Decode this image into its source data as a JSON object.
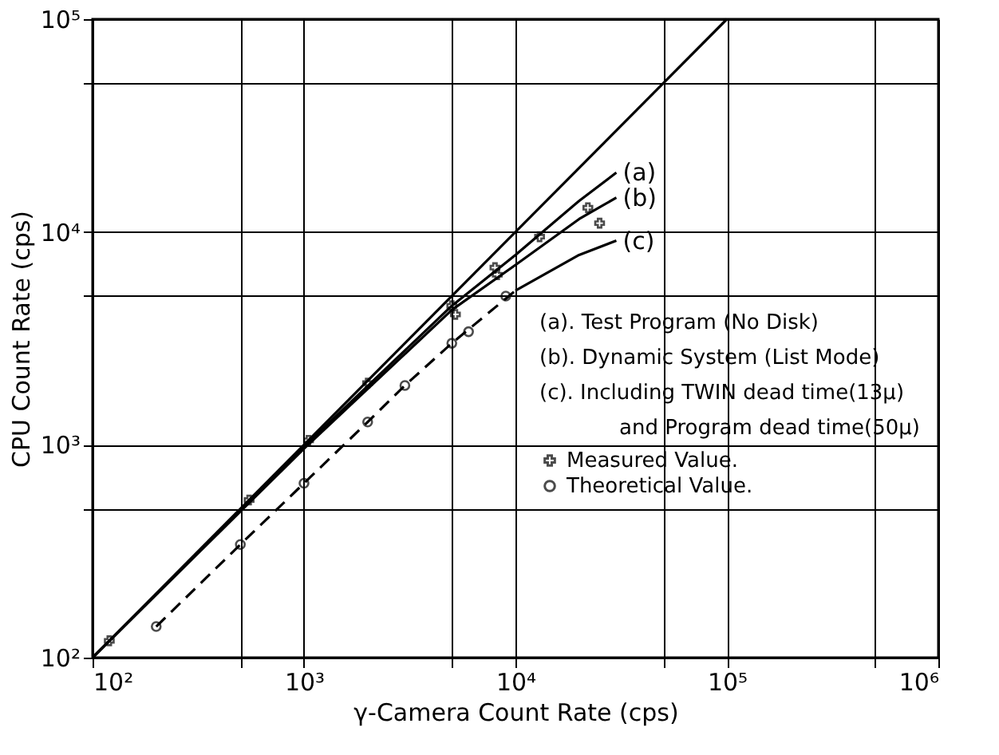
{
  "chart_data": {
    "type": "line",
    "xlabel": "γ-Camera Count Rate (cps)",
    "ylabel": "CPU Count Rate (cps)",
    "log": "xy",
    "grid": true,
    "legend": "right",
    "xlim": [
      100,
      1000000
    ],
    "ylim": [
      100,
      100000
    ],
    "xticks": [
      {
        "value": 100,
        "label": "10²"
      },
      {
        "value": 500,
        "label": null
      },
      {
        "value": 1000,
        "label": "10³"
      },
      {
        "value": 5000,
        "label": null
      },
      {
        "value": 10000,
        "label": "10⁴"
      },
      {
        "value": 50000,
        "label": null
      },
      {
        "value": 100000,
        "label": "10⁵"
      },
      {
        "value": 500000,
        "label": null
      },
      {
        "value": 1000000,
        "label": "10⁶"
      }
    ],
    "yticks": [
      {
        "value": 100,
        "label": "10²"
      },
      {
        "value": 500,
        "label": null
      },
      {
        "value": 1000,
        "label": "10³"
      },
      {
        "value": 5000,
        "label": null
      },
      {
        "value": 10000,
        "label": "10⁴"
      },
      {
        "value": 50000,
        "label": null
      },
      {
        "value": 100000,
        "label": "10⁵"
      }
    ],
    "series": [
      {
        "color": "#000000",
        "line_style": "solid",
        "marker": "none",
        "x": [
          100,
          100000
        ],
        "values": [
          100,
          100000
        ]
      },
      {
        "name": "(a)",
        "color": "#000000",
        "line_style": "solid",
        "marker": "none",
        "x": [
          100,
          1000,
          5000,
          10000,
          20000,
          30000
        ],
        "values": [
          100,
          980,
          4500,
          7800,
          14000,
          19000
        ]
      },
      {
        "name": "(b)",
        "color": "#000000",
        "line_style": "solid",
        "marker": "none",
        "x": [
          100,
          1000,
          5000,
          10000,
          20000,
          30000
        ],
        "values": [
          100,
          960,
          4300,
          7000,
          11500,
          14500
        ]
      },
      {
        "color": "#000000",
        "line_style": "dashed",
        "marker": "none",
        "x": [
          200,
          500,
          1000,
          2000,
          3000,
          5000,
          10000
        ],
        "values": [
          140,
          340,
          660,
          1280,
          1900,
          3000,
          5300
        ]
      },
      {
        "name": "(c)",
        "color": "#000000",
        "line_style": "solid",
        "marker": "none",
        "x": [
          10000,
          20000,
          30000
        ],
        "values": [
          5300,
          7800,
          9100
        ]
      },
      {
        "name": "Measured Value.",
        "type": "scatter",
        "color": "#000000",
        "marker": "cross",
        "x": [
          120,
          550,
          1050,
          2000,
          5000,
          5200,
          8000,
          8200,
          13000,
          22000,
          25000
        ],
        "values": [
          120,
          550,
          1050,
          1950,
          4500,
          4100,
          6800,
          6300,
          9500,
          13000,
          11000
        ]
      },
      {
        "name": "Theoretical Value.",
        "type": "scatter",
        "color": "#000000",
        "marker": "circle",
        "x": [
          200,
          500,
          1000,
          2000,
          3000,
          5000,
          6000,
          9000
        ],
        "values": [
          140,
          340,
          660,
          1280,
          1900,
          3000,
          3400,
          5000
        ]
      }
    ],
    "annotations": [
      "(a). Test Program (No Disk)",
      "(b). Dynamic System (List Mode)",
      "(c). Including TWIN dead time(13μ)",
      "and Program dead time(50μ)"
    ]
  }
}
